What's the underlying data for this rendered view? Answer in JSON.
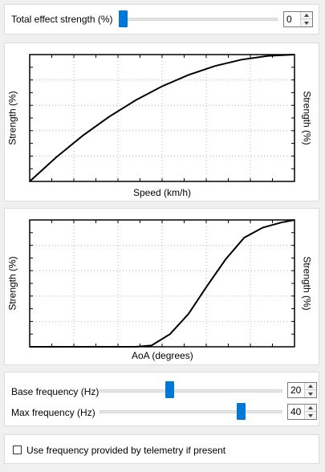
{
  "total_effect": {
    "label": "Total effect strength (%)",
    "value": "0",
    "level": 0.0
  },
  "speed_chart": {
    "xlabel": "Speed (km/h)",
    "ylabel_left": "Strength (%)",
    "ylabel_right": "Strength (%)"
  },
  "aoa_chart": {
    "xlabel": "AoA (degrees)",
    "ylabel_left": "Strength (%)",
    "ylabel_right": "Strength (%)"
  },
  "frequency": {
    "base_label": "Base frequency (Hz)",
    "base_value": "20",
    "base_level": 0.38,
    "max_label": "Max frequency (Hz)",
    "max_value": "40",
    "max_level": 0.79
  },
  "telemetry_checkbox": {
    "label": "Use frequency provided by telemetry if present",
    "checked": false
  },
  "colors": {
    "accent": "#0078d7",
    "curve": "#000000",
    "grid": "#b4b4b4"
  },
  "chart_data": [
    {
      "type": "line",
      "xlabel": "Speed (km/h)",
      "ylabel": "Strength (%)",
      "xlim": [
        0,
        10
      ],
      "ylim": [
        0,
        100
      ],
      "grid": true,
      "series": [
        {
          "x": [
            0,
            1,
            2,
            3,
            4,
            5,
            6,
            7,
            8,
            9,
            10
          ],
          "values": [
            0,
            19,
            36,
            51,
            64,
            75,
            84,
            91,
            96,
            99,
            100
          ]
        }
      ]
    },
    {
      "type": "line",
      "xlabel": "AoA (degrees)",
      "ylabel": "Strength (%)",
      "xlim": [
        0,
        10
      ],
      "ylim": [
        0,
        100
      ],
      "grid": true,
      "series": [
        {
          "x": [
            0,
            1,
            2,
            3,
            4,
            4.6,
            5.3,
            6,
            6.7,
            7.4,
            8.1,
            8.8,
            9.5,
            10
          ],
          "values": [
            0,
            0,
            0,
            0,
            0,
            1,
            10,
            26,
            48,
            69,
            86,
            94,
            98,
            100
          ]
        }
      ]
    }
  ]
}
